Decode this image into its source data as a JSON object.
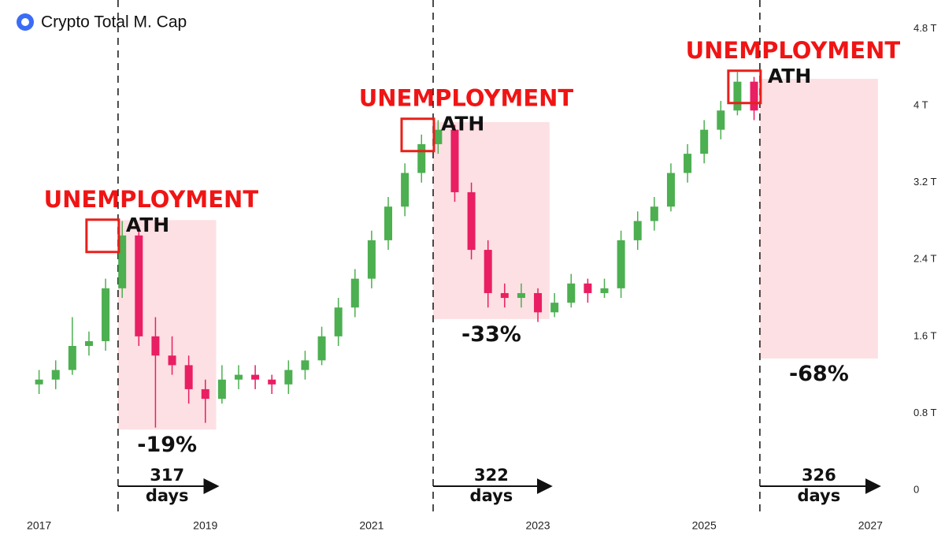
{
  "chart_data": {
    "type": "candlestick",
    "title": "Crypto Total M. Cap",
    "x": [
      2017.0,
      2017.2,
      2017.4,
      2017.6,
      2017.8,
      2018.0,
      2018.2,
      2018.4,
      2018.6,
      2018.8,
      2019.0,
      2019.2,
      2019.4,
      2019.6,
      2019.8,
      2020.0,
      2020.2,
      2020.4,
      2020.6,
      2020.8,
      2021.0,
      2021.2,
      2021.4,
      2021.6,
      2021.8,
      2022.0,
      2022.2,
      2022.4,
      2022.6,
      2022.8,
      2023.0,
      2023.2,
      2023.4,
      2023.6,
      2023.8,
      2024.0,
      2024.2,
      2024.4,
      2024.6,
      2024.8,
      2025.0,
      2025.2,
      2025.4,
      2025.6
    ],
    "open": [
      1.1,
      1.15,
      1.25,
      1.5,
      1.55,
      2.1,
      2.65,
      1.6,
      1.4,
      1.3,
      1.05,
      0.95,
      1.15,
      1.2,
      1.15,
      1.1,
      1.25,
      1.35,
      1.6,
      1.9,
      2.2,
      2.6,
      2.95,
      3.3,
      3.6,
      3.75,
      3.1,
      2.5,
      2.05,
      2.0,
      2.05,
      1.85,
      1.95,
      2.15,
      2.05,
      2.1,
      2.6,
      2.8,
      2.95,
      3.3,
      3.5,
      3.75,
      3.95,
      4.25
    ],
    "close": [
      1.15,
      1.25,
      1.5,
      1.55,
      2.1,
      2.65,
      1.6,
      1.4,
      1.3,
      1.05,
      0.95,
      1.15,
      1.2,
      1.15,
      1.1,
      1.25,
      1.35,
      1.6,
      1.9,
      2.2,
      2.6,
      2.95,
      3.3,
      3.6,
      3.75,
      3.1,
      2.5,
      2.05,
      2.0,
      2.05,
      1.85,
      1.95,
      2.15,
      2.05,
      2.1,
      2.6,
      2.8,
      2.95,
      3.3,
      3.5,
      3.75,
      3.95,
      4.25,
      3.95
    ],
    "high": [
      1.25,
      1.35,
      1.8,
      1.65,
      2.2,
      2.8,
      2.7,
      1.8,
      1.6,
      1.4,
      1.15,
      1.3,
      1.3,
      1.3,
      1.2,
      1.35,
      1.45,
      1.7,
      2.0,
      2.3,
      2.7,
      3.05,
      3.4,
      3.7,
      3.85,
      3.8,
      3.2,
      2.6,
      2.15,
      2.15,
      2.1,
      2.05,
      2.25,
      2.2,
      2.2,
      2.7,
      2.9,
      3.05,
      3.4,
      3.6,
      3.85,
      4.05,
      4.35,
      4.3
    ],
    "low": [
      1.0,
      1.05,
      1.2,
      1.4,
      1.45,
      2.0,
      1.5,
      0.65,
      1.2,
      0.9,
      0.7,
      0.9,
      1.05,
      1.05,
      1.0,
      1.0,
      1.15,
      1.3,
      1.5,
      1.8,
      2.1,
      2.5,
      2.85,
      3.2,
      3.5,
      3.0,
      2.4,
      1.9,
      1.9,
      1.9,
      1.75,
      1.8,
      1.9,
      1.95,
      2.0,
      2.0,
      2.5,
      2.7,
      2.9,
      3.2,
      3.4,
      3.65,
      3.9,
      3.85
    ],
    "up_color": "#4caf50",
    "down_color": "#e91e63",
    "xlim": [
      2016.53,
      2027.3
    ],
    "xticks": [
      2017,
      2019,
      2021,
      2023,
      2025,
      2027
    ],
    "ylim": [
      -0.23,
      5.1
    ],
    "yticks": [
      0,
      {
        "value": 0.8,
        "label": "0.8 T"
      },
      {
        "value": 1.6,
        "label": "1.6 T"
      },
      {
        "value": 2.4,
        "label": "2.4 T"
      },
      {
        "value": 3.2,
        "label": "3.2 T"
      },
      {
        "value": 4,
        "label": "4 T"
      },
      {
        "value": 4.8,
        "label": "4.8 T"
      }
    ],
    "events": [
      {
        "label": "UNEMPLOYMENT",
        "marker": "ATH",
        "ath_x": 2017.76,
        "ath_y": 2.65,
        "x_range": [
          2017.95,
          2019.13
        ],
        "y_range": [
          0.63,
          2.81
        ],
        "change": "-19%",
        "duration": "317 days"
      },
      {
        "label": "UNEMPLOYMENT",
        "marker": "ATH",
        "ath_x": 2021.55,
        "ath_y": 3.7,
        "x_range": [
          2021.74,
          2023.14
        ],
        "y_range": [
          1.78,
          3.83
        ],
        "change": "-33%",
        "duration": "322 days"
      },
      {
        "label": "UNEMPLOYMENT",
        "marker": "ATH",
        "ath_x": 2025.48,
        "ath_y": 4.2,
        "x_range": [
          2025.67,
          2027.09
        ],
        "y_range": [
          1.37,
          4.28
        ],
        "change": "-68%",
        "duration": "326 days"
      }
    ]
  }
}
